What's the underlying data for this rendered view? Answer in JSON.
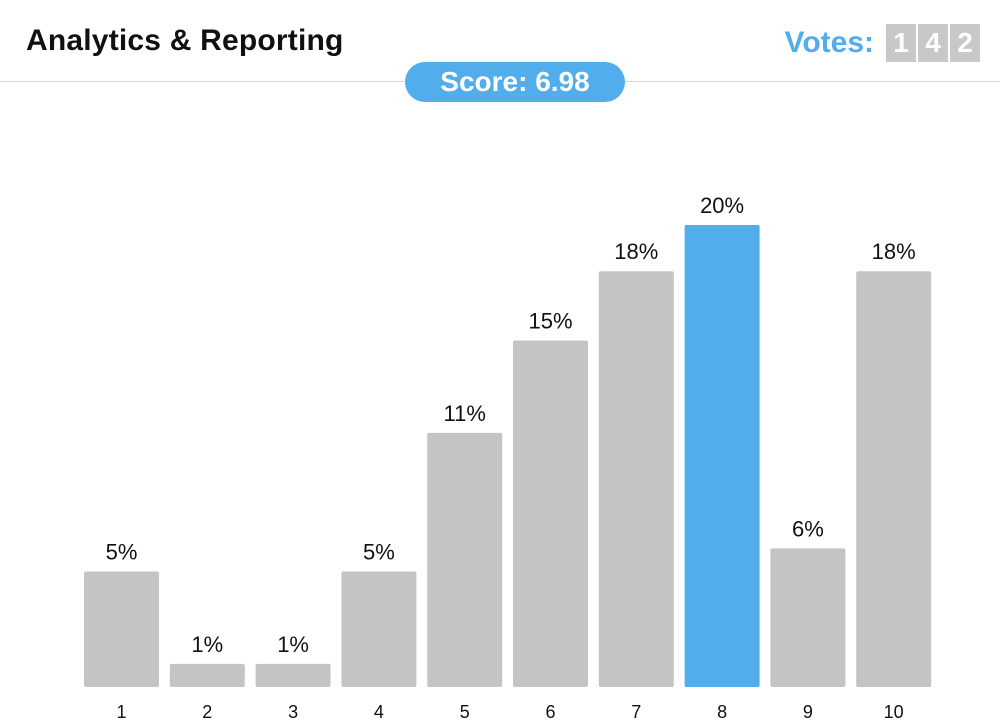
{
  "header": {
    "title": "Analytics & Reporting",
    "votes_label": "Votes:",
    "votes_digits": [
      "1",
      "4",
      "2"
    ],
    "score_text": "Score: 6.98"
  },
  "colors": {
    "accent": "#52adec",
    "bar": "#c4c4c4",
    "vote_digit_bg": "#c8c8c8",
    "text": "#111111"
  },
  "chart_data": {
    "type": "bar",
    "categories": [
      "1",
      "2",
      "3",
      "4",
      "5",
      "6",
      "7",
      "8",
      "9",
      "10"
    ],
    "values": [
      5,
      1,
      1,
      5,
      11,
      15,
      18,
      20,
      6,
      18
    ],
    "labels": [
      "5%",
      "1%",
      "1%",
      "5%",
      "11%",
      "15%",
      "18%",
      "20%",
      "6%",
      "18%"
    ],
    "highlight_category": "8",
    "unit": "%",
    "ylim": [
      0,
      20
    ],
    "grid": false,
    "title": "",
    "xlabel": "",
    "ylabel": ""
  }
}
